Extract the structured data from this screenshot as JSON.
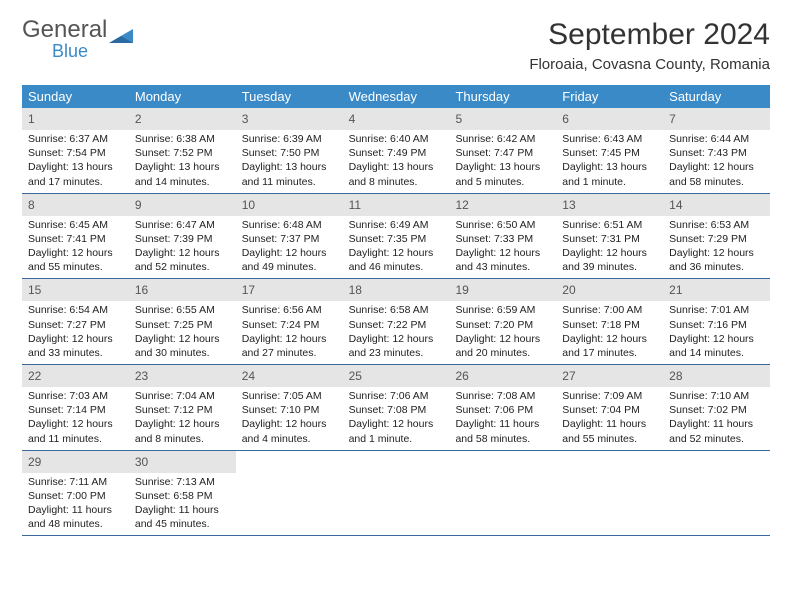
{
  "logo": {
    "general": "General",
    "blue": "Blue"
  },
  "title": "September 2024",
  "location": "Floroaia, Covasna County, Romania",
  "colors": {
    "header_bg": "#3a8ac8",
    "daynum_bg": "#e5e5e5",
    "week_border": "#3a6a9a"
  },
  "weekdays": [
    "Sunday",
    "Monday",
    "Tuesday",
    "Wednesday",
    "Thursday",
    "Friday",
    "Saturday"
  ],
  "weeks": [
    [
      {
        "n": "1",
        "sr": "6:37 AM",
        "ss": "7:54 PM",
        "dl": "13 hours and 17 minutes."
      },
      {
        "n": "2",
        "sr": "6:38 AM",
        "ss": "7:52 PM",
        "dl": "13 hours and 14 minutes."
      },
      {
        "n": "3",
        "sr": "6:39 AM",
        "ss": "7:50 PM",
        "dl": "13 hours and 11 minutes."
      },
      {
        "n": "4",
        "sr": "6:40 AM",
        "ss": "7:49 PM",
        "dl": "13 hours and 8 minutes."
      },
      {
        "n": "5",
        "sr": "6:42 AM",
        "ss": "7:47 PM",
        "dl": "13 hours and 5 minutes."
      },
      {
        "n": "6",
        "sr": "6:43 AM",
        "ss": "7:45 PM",
        "dl": "13 hours and 1 minute."
      },
      {
        "n": "7",
        "sr": "6:44 AM",
        "ss": "7:43 PM",
        "dl": "12 hours and 58 minutes."
      }
    ],
    [
      {
        "n": "8",
        "sr": "6:45 AM",
        "ss": "7:41 PM",
        "dl": "12 hours and 55 minutes."
      },
      {
        "n": "9",
        "sr": "6:47 AM",
        "ss": "7:39 PM",
        "dl": "12 hours and 52 minutes."
      },
      {
        "n": "10",
        "sr": "6:48 AM",
        "ss": "7:37 PM",
        "dl": "12 hours and 49 minutes."
      },
      {
        "n": "11",
        "sr": "6:49 AM",
        "ss": "7:35 PM",
        "dl": "12 hours and 46 minutes."
      },
      {
        "n": "12",
        "sr": "6:50 AM",
        "ss": "7:33 PM",
        "dl": "12 hours and 43 minutes."
      },
      {
        "n": "13",
        "sr": "6:51 AM",
        "ss": "7:31 PM",
        "dl": "12 hours and 39 minutes."
      },
      {
        "n": "14",
        "sr": "6:53 AM",
        "ss": "7:29 PM",
        "dl": "12 hours and 36 minutes."
      }
    ],
    [
      {
        "n": "15",
        "sr": "6:54 AM",
        "ss": "7:27 PM",
        "dl": "12 hours and 33 minutes."
      },
      {
        "n": "16",
        "sr": "6:55 AM",
        "ss": "7:25 PM",
        "dl": "12 hours and 30 minutes."
      },
      {
        "n": "17",
        "sr": "6:56 AM",
        "ss": "7:24 PM",
        "dl": "12 hours and 27 minutes."
      },
      {
        "n": "18",
        "sr": "6:58 AM",
        "ss": "7:22 PM",
        "dl": "12 hours and 23 minutes."
      },
      {
        "n": "19",
        "sr": "6:59 AM",
        "ss": "7:20 PM",
        "dl": "12 hours and 20 minutes."
      },
      {
        "n": "20",
        "sr": "7:00 AM",
        "ss": "7:18 PM",
        "dl": "12 hours and 17 minutes."
      },
      {
        "n": "21",
        "sr": "7:01 AM",
        "ss": "7:16 PM",
        "dl": "12 hours and 14 minutes."
      }
    ],
    [
      {
        "n": "22",
        "sr": "7:03 AM",
        "ss": "7:14 PM",
        "dl": "12 hours and 11 minutes."
      },
      {
        "n": "23",
        "sr": "7:04 AM",
        "ss": "7:12 PM",
        "dl": "12 hours and 8 minutes."
      },
      {
        "n": "24",
        "sr": "7:05 AM",
        "ss": "7:10 PM",
        "dl": "12 hours and 4 minutes."
      },
      {
        "n": "25",
        "sr": "7:06 AM",
        "ss": "7:08 PM",
        "dl": "12 hours and 1 minute."
      },
      {
        "n": "26",
        "sr": "7:08 AM",
        "ss": "7:06 PM",
        "dl": "11 hours and 58 minutes."
      },
      {
        "n": "27",
        "sr": "7:09 AM",
        "ss": "7:04 PM",
        "dl": "11 hours and 55 minutes."
      },
      {
        "n": "28",
        "sr": "7:10 AM",
        "ss": "7:02 PM",
        "dl": "11 hours and 52 minutes."
      }
    ],
    [
      {
        "n": "29",
        "sr": "7:11 AM",
        "ss": "7:00 PM",
        "dl": "11 hours and 48 minutes."
      },
      {
        "n": "30",
        "sr": "7:13 AM",
        "ss": "6:58 PM",
        "dl": "11 hours and 45 minutes."
      },
      null,
      null,
      null,
      null,
      null
    ]
  ],
  "labels": {
    "sunrise": "Sunrise:",
    "sunset": "Sunset:",
    "daylight": "Daylight:"
  }
}
